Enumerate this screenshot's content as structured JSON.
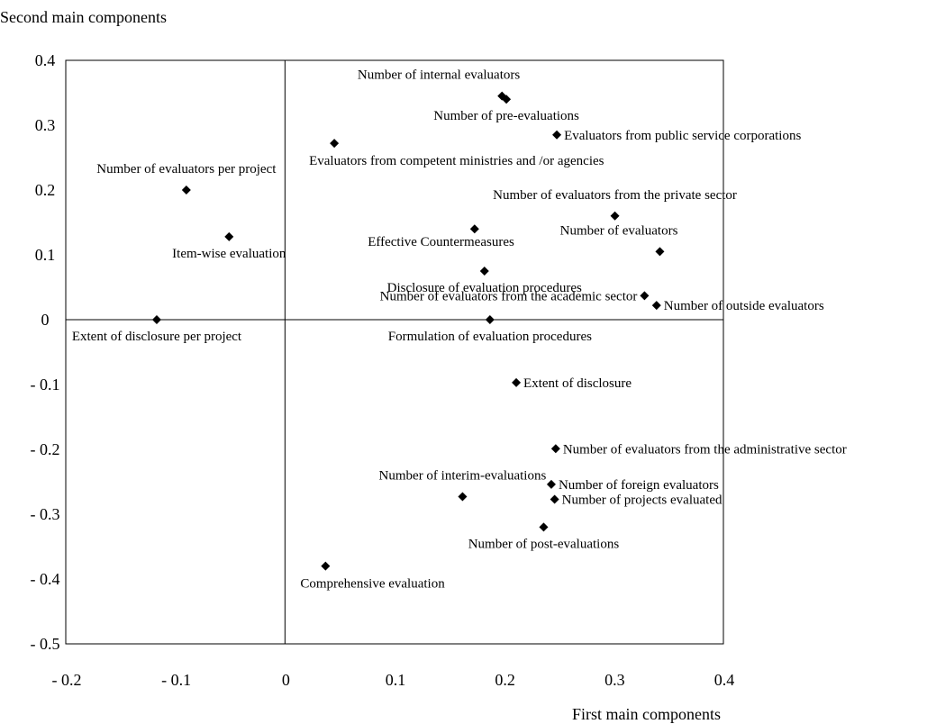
{
  "chart_data": {
    "type": "scatter",
    "xlabel": "First main components",
    "ylabel": "Second main components",
    "xlim": [
      -0.2,
      0.4
    ],
    "ylim": [
      -0.5,
      0.4
    ],
    "x_ticks": [
      {
        "value": -0.2,
        "label": "- 0.2"
      },
      {
        "value": -0.1,
        "label": "- 0.1"
      },
      {
        "value": 0,
        "label": "0"
      },
      {
        "value": 0.1,
        "label": "0.1"
      },
      {
        "value": 0.2,
        "label": "0.2"
      },
      {
        "value": 0.3,
        "label": "0.3"
      },
      {
        "value": 0.4,
        "label": "0.4"
      }
    ],
    "y_ticks": [
      {
        "value": 0.4,
        "label": "0.4"
      },
      {
        "value": 0.3,
        "label": "0.3"
      },
      {
        "value": 0.2,
        "label": "0.2"
      },
      {
        "value": 0.1,
        "label": "0.1"
      },
      {
        "value": 0,
        "label": "0"
      },
      {
        "value": -0.1,
        "label": "- 0.1"
      },
      {
        "value": -0.2,
        "label": "- 0.2"
      },
      {
        "value": -0.3,
        "label": "- 0.3"
      },
      {
        "value": -0.4,
        "label": "- 0.4"
      },
      {
        "value": -0.5,
        "label": "- 0.5"
      }
    ],
    "marker": "diamond",
    "marker_color": "#000000",
    "grid": false,
    "reference_lines": [
      "x=0",
      "y=0"
    ],
    "points": [
      {
        "label": "Number of internal evaluators",
        "x": 0.198,
        "y": 0.345,
        "anchor": "above-left"
      },
      {
        "label": "Number of pre-evaluations",
        "x": 0.202,
        "y": 0.34,
        "anchor": "below"
      },
      {
        "label": "Evaluators from public service corporations",
        "x": 0.248,
        "y": 0.285,
        "anchor": "right"
      },
      {
        "label": "Evaluators from competent ministries and /or agencies",
        "x": 0.045,
        "y": 0.272,
        "anchor": "below-right"
      },
      {
        "label": "Number of evaluators per project",
        "x": -0.09,
        "y": 0.2,
        "anchor": "above"
      },
      {
        "label": "Number of evaluators from the private sector",
        "x": 0.301,
        "y": 0.16,
        "anchor": "above"
      },
      {
        "label": "Effective Countermeasures",
        "x": 0.173,
        "y": 0.14,
        "anchor": "below-left"
      },
      {
        "label": "Item-wise evaluation",
        "x": -0.051,
        "y": 0.128,
        "anchor": "below"
      },
      {
        "label": "Number of evaluators",
        "x": 0.342,
        "y": 0.105,
        "anchor": "above-left"
      },
      {
        "label": "Disclosure of evaluation procedures",
        "x": 0.182,
        "y": 0.075,
        "anchor": "below"
      },
      {
        "label": "Number of evaluators from the academic sector",
        "x": 0.328,
        "y": 0.037,
        "anchor": "left"
      },
      {
        "label": "Number of outside evaluators",
        "x": 0.339,
        "y": 0.022,
        "anchor": "right"
      },
      {
        "label": "Extent of disclosure per project",
        "x": -0.117,
        "y": 0.0,
        "anchor": "below"
      },
      {
        "label": "Formulation of evaluation procedures",
        "x": 0.187,
        "y": 0.0,
        "anchor": "below"
      },
      {
        "label": "Extent of disclosure",
        "x": 0.211,
        "y": -0.097,
        "anchor": "right"
      },
      {
        "label": "Number of evaluators from the administrative sector",
        "x": 0.247,
        "y": -0.199,
        "anchor": "right"
      },
      {
        "label": "Number of foreign evaluators",
        "x": 0.243,
        "y": -0.254,
        "anchor": "right"
      },
      {
        "label": "Number of interim-evaluations",
        "x": 0.162,
        "y": -0.273,
        "anchor": "above"
      },
      {
        "label": "Number of projects evaluated",
        "x": 0.246,
        "y": -0.277,
        "anchor": "right"
      },
      {
        "label": "Number of post-evaluations",
        "x": 0.236,
        "y": -0.32,
        "anchor": "below"
      },
      {
        "label": "Comprehensive evaluation",
        "x": 0.037,
        "y": -0.38,
        "anchor": "below-right"
      }
    ]
  }
}
